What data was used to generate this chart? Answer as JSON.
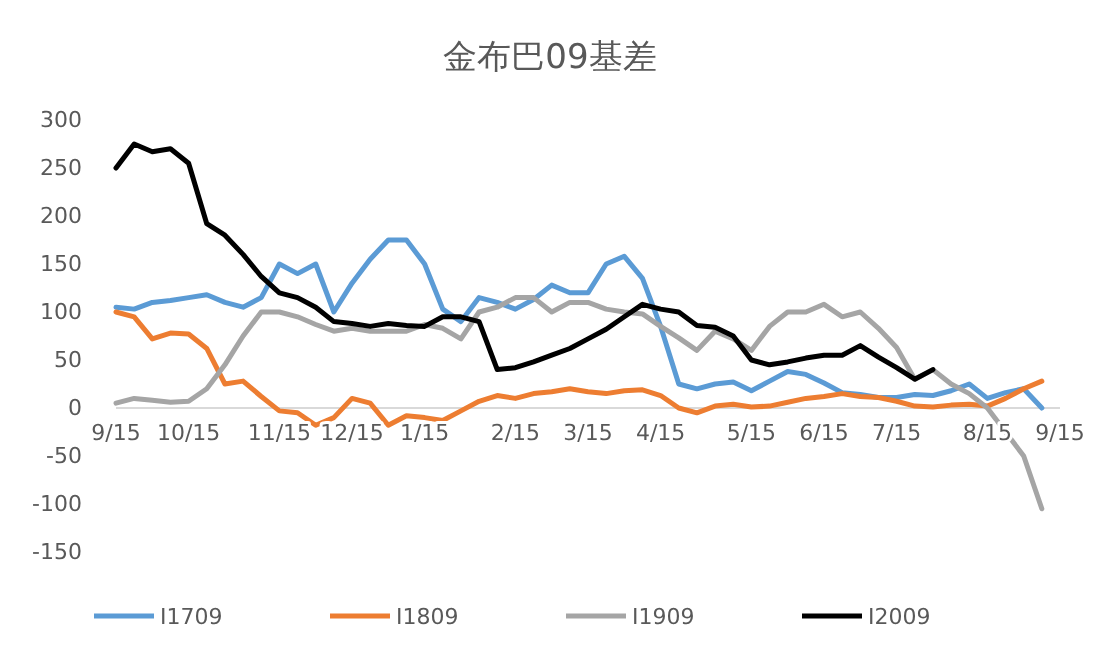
{
  "chart_data": {
    "type": "line",
    "title": "金布巴09基差",
    "categories": [
      "9/15",
      null,
      null,
      null,
      "10/15",
      null,
      null,
      null,
      null,
      "11/15",
      null,
      null,
      null,
      "12/15",
      null,
      null,
      null,
      "1/15",
      null,
      null,
      null,
      null,
      "2/15",
      null,
      null,
      null,
      "3/15",
      null,
      null,
      null,
      "4/15",
      null,
      null,
      null,
      null,
      "5/15",
      null,
      null,
      null,
      "6/15",
      null,
      null,
      null,
      "7/15",
      null,
      null,
      null,
      null,
      "8/15",
      null,
      null,
      null,
      "9/15"
    ],
    "ylim": [
      -150,
      300
    ],
    "yticks": [
      -150,
      -100,
      -50,
      0,
      50,
      100,
      150,
      200,
      250,
      300
    ],
    "grid": false,
    "legend": "bottom",
    "marker": "none",
    "line_style": "solid",
    "series": [
      {
        "name": "I1709",
        "color": "#5b9bd5",
        "values": [
          105,
          103,
          110,
          112,
          115,
          118,
          110,
          105,
          115,
          150,
          140,
          150,
          100,
          130,
          155,
          175,
          175,
          150,
          103,
          90,
          115,
          110,
          103,
          113,
          128,
          120,
          120,
          150,
          158,
          135,
          85,
          25,
          20,
          25,
          27,
          18,
          28,
          38,
          35,
          26,
          16,
          14,
          11,
          11,
          14,
          13,
          18,
          25,
          10,
          16,
          20,
          0,
          null
        ]
      },
      {
        "name": "I1809",
        "color": "#ed7d31",
        "values": [
          100,
          95,
          72,
          78,
          77,
          62,
          25,
          28,
          12,
          -3,
          -5,
          -18,
          -10,
          10,
          5,
          -18,
          -8,
          -10,
          -13,
          -3,
          7,
          13,
          10,
          15,
          17,
          20,
          17,
          15,
          18,
          19,
          13,
          0,
          -5,
          2,
          4,
          1,
          2,
          6,
          10,
          12,
          15,
          12,
          11,
          7,
          2,
          1,
          3,
          4,
          2,
          10,
          20,
          28,
          null
        ]
      },
      {
        "name": "I1909",
        "color": "#a5a5a5",
        "values": [
          5,
          10,
          8,
          6,
          7,
          20,
          45,
          75,
          100,
          100,
          95,
          87,
          80,
          83,
          80,
          80,
          80,
          87,
          83,
          72,
          100,
          105,
          115,
          115,
          100,
          110,
          110,
          103,
          100,
          98,
          85,
          73,
          60,
          80,
          72,
          60,
          85,
          100,
          100,
          108,
          95,
          100,
          83,
          63,
          30,
          40,
          25,
          15,
          0,
          -25,
          -50,
          -105,
          null
        ]
      },
      {
        "name": "I2009",
        "color": "#000000",
        "values": [
          250,
          275,
          267,
          270,
          255,
          192,
          180,
          160,
          137,
          120,
          115,
          105,
          90,
          88,
          85,
          88,
          86,
          85,
          95,
          95,
          90,
          40,
          42,
          48,
          55,
          62,
          72,
          82,
          95,
          108,
          103,
          100,
          86,
          84,
          75,
          50,
          45,
          48,
          52,
          55,
          55,
          65,
          53,
          42,
          30,
          40,
          null,
          null,
          null,
          null,
          null,
          null,
          null
        ]
      }
    ]
  }
}
